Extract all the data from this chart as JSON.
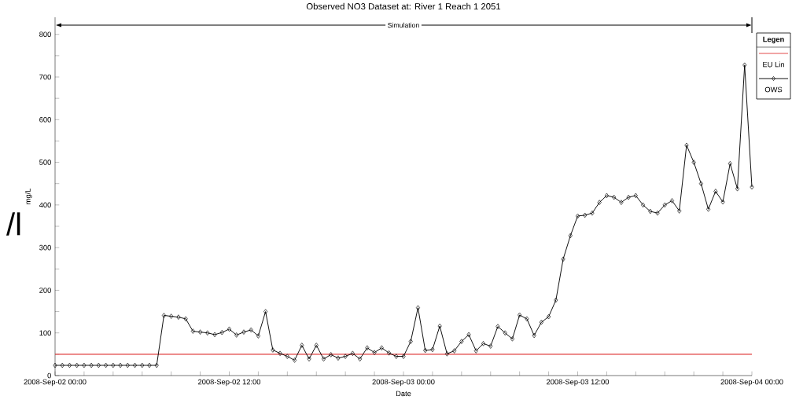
{
  "chart_data": {
    "type": "line",
    "title": "Observed NO3 Dataset at: River 1 Reach 1 2051",
    "xlabel": "Date",
    "ylabel": "mg/L",
    "legend_title": "Legen",
    "annotations": [
      "/l",
      "Simulation"
    ],
    "x": [
      "2008-09-02T00:00",
      "2008-09-02T00:30",
      "2008-09-02T01:00",
      "2008-09-02T01:30",
      "2008-09-02T02:00",
      "2008-09-02T02:30",
      "2008-09-02T03:00",
      "2008-09-02T03:30",
      "2008-09-02T04:00",
      "2008-09-02T04:30",
      "2008-09-02T05:00",
      "2008-09-02T05:30",
      "2008-09-02T06:00",
      "2008-09-02T06:30",
      "2008-09-02T07:00",
      "2008-09-02T07:30",
      "2008-09-02T08:00",
      "2008-09-02T08:30",
      "2008-09-02T09:00",
      "2008-09-02T09:30",
      "2008-09-02T10:00",
      "2008-09-02T10:30",
      "2008-09-02T11:00",
      "2008-09-02T11:30",
      "2008-09-02T12:00",
      "2008-09-02T12:30",
      "2008-09-02T13:00",
      "2008-09-02T13:30",
      "2008-09-02T14:00",
      "2008-09-02T14:30",
      "2008-09-02T15:00",
      "2008-09-02T15:30",
      "2008-09-02T16:00",
      "2008-09-02T16:30",
      "2008-09-02T17:00",
      "2008-09-02T17:30",
      "2008-09-02T18:00",
      "2008-09-02T18:30",
      "2008-09-02T19:00",
      "2008-09-02T19:30",
      "2008-09-02T20:00",
      "2008-09-02T20:30",
      "2008-09-02T21:00",
      "2008-09-02T21:30",
      "2008-09-02T22:00",
      "2008-09-02T22:30",
      "2008-09-02T23:00",
      "2008-09-02T23:30",
      "2008-09-03T00:00",
      "2008-09-03T00:30",
      "2008-09-03T01:00",
      "2008-09-03T01:30",
      "2008-09-03T02:00",
      "2008-09-03T02:30",
      "2008-09-03T03:00",
      "2008-09-03T03:30",
      "2008-09-03T04:00",
      "2008-09-03T04:30",
      "2008-09-03T05:00",
      "2008-09-03T05:30",
      "2008-09-03T06:00",
      "2008-09-03T06:30",
      "2008-09-03T07:00",
      "2008-09-03T07:30",
      "2008-09-03T08:00",
      "2008-09-03T08:30",
      "2008-09-03T09:00",
      "2008-09-03T09:30",
      "2008-09-03T10:00",
      "2008-09-03T10:30",
      "2008-09-03T11:00",
      "2008-09-03T11:30",
      "2008-09-03T12:00",
      "2008-09-03T12:30",
      "2008-09-03T13:00",
      "2008-09-03T13:30",
      "2008-09-03T14:00",
      "2008-09-03T14:30",
      "2008-09-03T15:00",
      "2008-09-03T15:30",
      "2008-09-03T16:00",
      "2008-09-03T16:30",
      "2008-09-03T17:00",
      "2008-09-03T17:30",
      "2008-09-03T18:00",
      "2008-09-03T18:30",
      "2008-09-03T19:00",
      "2008-09-03T19:30",
      "2008-09-03T20:00",
      "2008-09-03T20:30",
      "2008-09-03T21:00",
      "2008-09-03T21:30",
      "2008-09-03T22:00",
      "2008-09-03T22:30",
      "2008-09-03T23:00",
      "2008-09-03T23:30",
      "2008-09-04T00:00"
    ],
    "series": [
      {
        "name": "OWS",
        "color": "#000000",
        "values": [
          24,
          24,
          24,
          24,
          24,
          24,
          24,
          24,
          24,
          24,
          24,
          24,
          24,
          24,
          24,
          141,
          139,
          137,
          133,
          104,
          102,
          100,
          96,
          101,
          109,
          95,
          102,
          107,
          93,
          150,
          60,
          52,
          45,
          36,
          71,
          39,
          71,
          39,
          49,
          41,
          45,
          52,
          39,
          65,
          54,
          65,
          53,
          45,
          45,
          80,
          159,
          59,
          61,
          116,
          51,
          58,
          80,
          96,
          58,
          75,
          69,
          115,
          100,
          86,
          142,
          133,
          94,
          125,
          138,
          177,
          273,
          328,
          374,
          376,
          381,
          406,
          422,
          418,
          406,
          418,
          422,
          400,
          385,
          381,
          400,
          410,
          386,
          540,
          500,
          450,
          390,
          432,
          407,
          497,
          438,
          728,
          442
        ]
      }
    ],
    "ref_lines": [
      {
        "axis": "y",
        "value": 50,
        "label": "EU Lin",
        "color": "#e03c3c"
      }
    ],
    "xlim": [
      "2008-09-02T00:00",
      "2008-09-04T00:00"
    ],
    "xticks": [
      {
        "value": "2008-09-02T00:00",
        "label": "2008-Sep-02 00:00"
      },
      {
        "value": "2008-09-02T02:00",
        "label": null
      },
      {
        "value": "2008-09-02T04:00",
        "label": null
      },
      {
        "value": "2008-09-02T06:00",
        "label": null
      },
      {
        "value": "2008-09-02T08:00",
        "label": null
      },
      {
        "value": "2008-09-02T10:00",
        "label": null
      },
      {
        "value": "2008-09-02T12:00",
        "label": "2008-Sep-02 12:00"
      },
      {
        "value": "2008-09-02T14:00",
        "label": null
      },
      {
        "value": "2008-09-02T16:00",
        "label": null
      },
      {
        "value": "2008-09-02T18:00",
        "label": null
      },
      {
        "value": "2008-09-02T20:00",
        "label": null
      },
      {
        "value": "2008-09-02T22:00",
        "label": null
      },
      {
        "value": "2008-09-03T00:00",
        "label": "2008-Sep-03 00:00"
      },
      {
        "value": "2008-09-03T02:00",
        "label": null
      },
      {
        "value": "2008-09-03T04:00",
        "label": null
      },
      {
        "value": "2008-09-03T06:00",
        "label": null
      },
      {
        "value": "2008-09-03T08:00",
        "label": null
      },
      {
        "value": "2008-09-03T10:00",
        "label": null
      },
      {
        "value": "2008-09-03T12:00",
        "label": "2008-Sep-03 12:00"
      },
      {
        "value": "2008-09-03T14:00",
        "label": null
      },
      {
        "value": "2008-09-03T16:00",
        "label": null
      },
      {
        "value": "2008-09-03T18:00",
        "label": null
      },
      {
        "value": "2008-09-03T20:00",
        "label": null
      },
      {
        "value": "2008-09-03T22:00",
        "label": null
      },
      {
        "value": "2008-09-04T00:00",
        "label": "2008-Sep-04 00:00"
      }
    ],
    "ylim": [
      0,
      840
    ],
    "yticks": [
      0,
      {
        "value": 50,
        "label": null
      },
      100,
      {
        "value": 150,
        "label": null
      },
      200,
      {
        "value": 250,
        "label": null
      },
      300,
      {
        "value": 350,
        "label": null
      },
      400,
      {
        "value": 450,
        "label": null
      },
      500,
      {
        "value": 550,
        "label": null
      },
      600,
      {
        "value": 650,
        "label": null
      },
      700,
      {
        "value": 750,
        "label": null
      },
      800
    ],
    "grid": false,
    "legend": "top right",
    "marker": "diamond",
    "line_style": "solid"
  }
}
